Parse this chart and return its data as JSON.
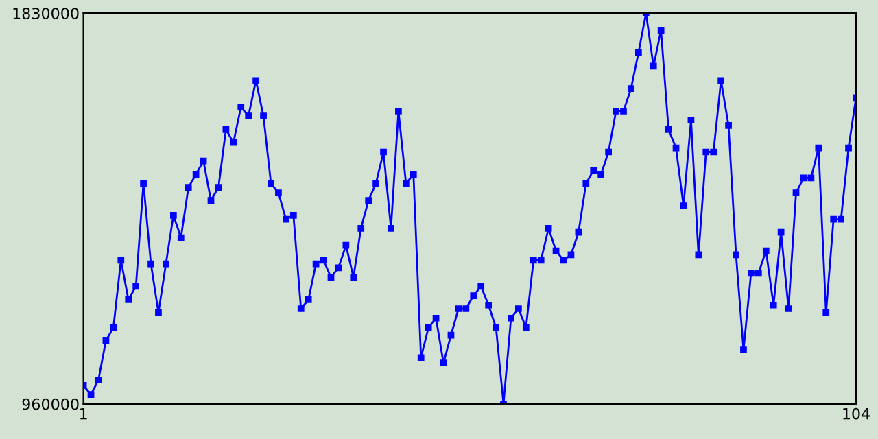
{
  "chart_data": {
    "type": "line",
    "x": [
      1,
      2,
      3,
      4,
      5,
      6,
      7,
      8,
      9,
      10,
      11,
      12,
      13,
      14,
      15,
      16,
      17,
      18,
      19,
      20,
      21,
      22,
      23,
      24,
      25,
      26,
      27,
      28,
      29,
      30,
      31,
      32,
      33,
      34,
      35,
      36,
      37,
      38,
      39,
      40,
      41,
      42,
      43,
      44,
      45,
      46,
      47,
      48,
      49,
      50,
      51,
      52,
      53,
      54,
      55,
      56,
      57,
      58,
      59,
      60,
      61,
      62,
      63,
      64,
      65,
      66,
      67,
      68,
      69,
      70,
      71,
      72,
      73,
      74,
      75,
      76,
      77,
      78,
      79,
      80,
      81,
      82,
      83,
      84,
      85,
      86,
      87,
      88,
      89,
      90,
      91,
      92,
      93,
      94,
      95,
      96,
      97,
      98,
      99,
      100,
      101,
      102,
      103,
      104
    ],
    "series": [
      {
        "color": "#0000ff",
        "values": [
          1001000,
          981000,
          1013000,
          1101000,
          1130000,
          1280000,
          1192000,
          1222000,
          1451000,
          1272000,
          1163000,
          1272000,
          1380000,
          1330000,
          1442000,
          1471000,
          1501000,
          1413000,
          1442000,
          1571000,
          1542000,
          1621000,
          1601000,
          1680000,
          1601000,
          1451000,
          1430000,
          1371000,
          1380000,
          1172000,
          1192000,
          1272000,
          1280000,
          1242000,
          1263000,
          1313000,
          1242000,
          1351000,
          1413000,
          1451000,
          1521000,
          1351000,
          1612000,
          1451000,
          1471000,
          1063000,
          1130000,
          1151000,
          1051000,
          1113000,
          1172000,
          1172000,
          1201000,
          1222000,
          1180000,
          1130000,
          960000,
          1151000,
          1172000,
          1130000,
          1280000,
          1280000,
          1351000,
          1301000,
          1280000,
          1292000,
          1342000,
          1451000,
          1480000,
          1471000,
          1521000,
          1612000,
          1612000,
          1662000,
          1742000,
          1830000,
          1712000,
          1792000,
          1571000,
          1530000,
          1401000,
          1592000,
          1292000,
          1521000,
          1521000,
          1680000,
          1580000,
          1292000,
          1080000,
          1251000,
          1251000,
          1301000,
          1180000,
          1342000,
          1172000,
          1430000,
          1463000,
          1463000,
          1530000,
          1163000,
          1371000,
          1371000,
          1530000,
          1642000
        ]
      }
    ],
    "xlim": [
      1,
      104
    ],
    "ylim": [
      960000,
      1830000
    ],
    "xticks": [
      1,
      104
    ],
    "yticks": [
      960000,
      1830000
    ],
    "grid": false,
    "legend": false,
    "marker": "square",
    "line_style": "solid"
  }
}
